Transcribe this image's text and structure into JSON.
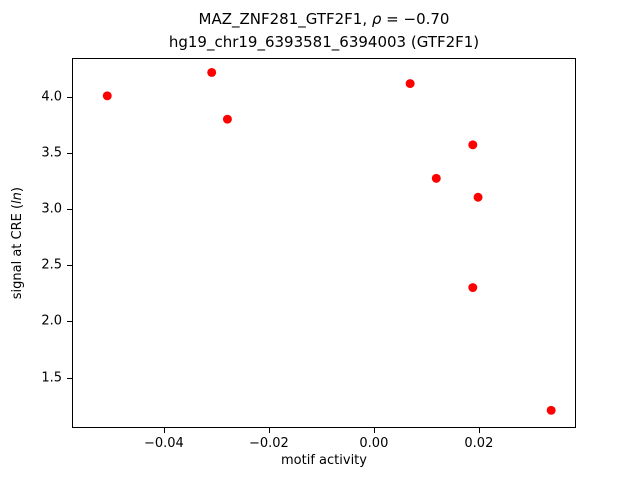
{
  "labels": {
    "title_prefix": "MAZ_ZNF281_GTF2F1, ",
    "title_rho": "ρ",
    "title_suffix": " = −0.70",
    "subtitle": "hg19_chr19_6393581_6394003 (GTF2F1)",
    "xlabel": "motif activity",
    "ylabel_prefix": "signal at CRE (",
    "ylabel_italic": "ln",
    "ylabel_suffix": ")"
  },
  "chart_data": {
    "type": "scatter",
    "title": "MAZ_ZNF281_GTF2F1, ρ = −0.70",
    "subtitle": "hg19_chr19_6393581_6394003 (GTF2F1)",
    "xlabel": "motif activity",
    "ylabel": "signal at CRE (ln)",
    "correlation_rho": -0.7,
    "marker_color": "#ff0000",
    "marker_radius_px": 4.5,
    "grid": false,
    "legend": false,
    "xlim": [
      -0.0575,
      0.0385
    ],
    "ylim": [
      1.05,
      4.35
    ],
    "x_ticks": {
      "values": [
        -0.04,
        -0.02,
        0.0,
        0.02
      ],
      "labels": [
        "−0.04",
        "−0.02",
        "0.00",
        "0.02"
      ]
    },
    "y_ticks": {
      "values": [
        1.5,
        2.0,
        2.5,
        3.0,
        3.5,
        4.0
      ],
      "labels": [
        "1.5",
        "2.0",
        "2.5",
        "3.0",
        "3.5",
        "4.0"
      ]
    },
    "points": [
      {
        "x": -0.051,
        "y": 4.02
      },
      {
        "x": -0.031,
        "y": 4.23
      },
      {
        "x": -0.028,
        "y": 3.81
      },
      {
        "x": 0.007,
        "y": 4.13
      },
      {
        "x": 0.012,
        "y": 3.28
      },
      {
        "x": 0.019,
        "y": 3.58
      },
      {
        "x": 0.02,
        "y": 3.11
      },
      {
        "x": 0.019,
        "y": 2.3
      },
      {
        "x": 0.034,
        "y": 1.2
      }
    ]
  }
}
